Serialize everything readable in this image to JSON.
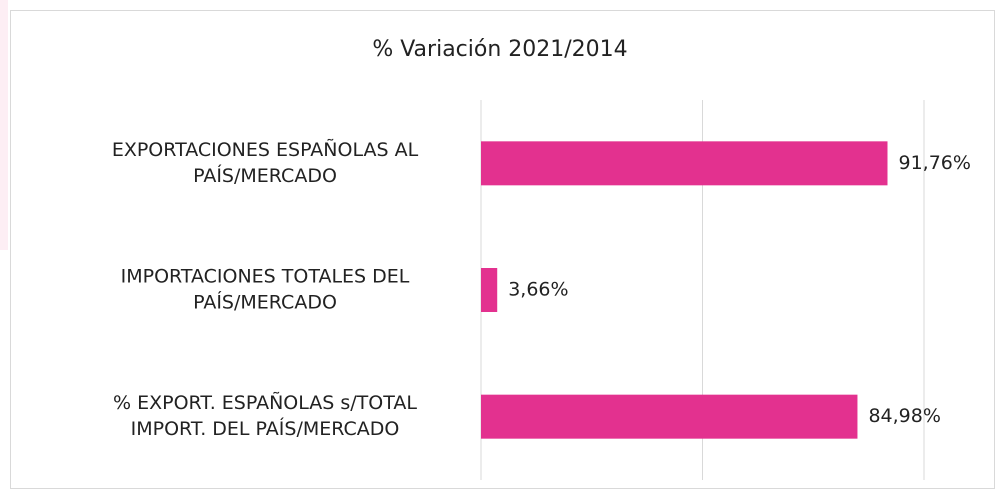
{
  "chart_data": {
    "type": "bar",
    "orientation": "horizontal",
    "title": "% Variación 2021/2014",
    "categories": [
      [
        "EXPORTACIONES ESPAÑOLAS AL",
        "PAÍS/MERCADO"
      ],
      [
        "IMPORTACIONES TOTALES DEL",
        "PAÍS/MERCADO"
      ],
      [
        "% EXPORT. ESPAÑOLAS s/TOTAL",
        "IMPORT. DEL PAÍS/MERCADO"
      ]
    ],
    "values": [
      91.76,
      3.66,
      84.98
    ],
    "value_labels": [
      "91,76%",
      "3,66%",
      "84,98%"
    ],
    "color": "#e3318f",
    "xlim": [
      0,
      100
    ],
    "xticks": [
      0,
      50,
      100
    ],
    "grid": true
  }
}
